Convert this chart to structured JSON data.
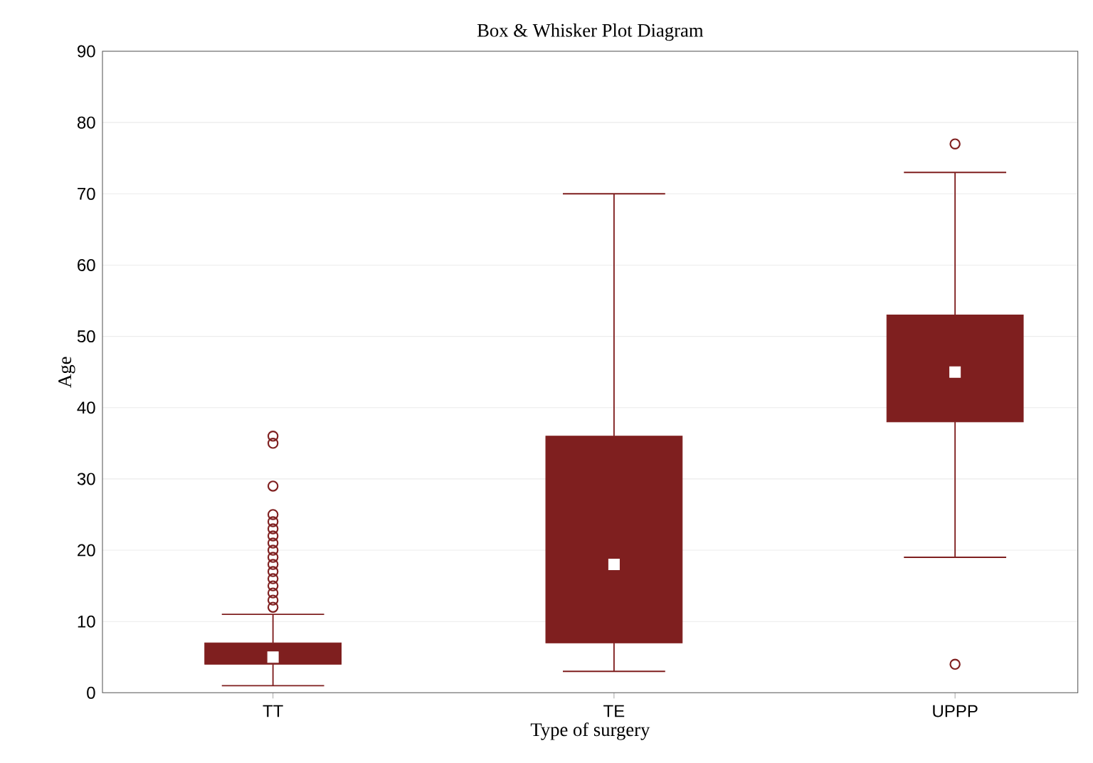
{
  "chart_data": {
    "type": "box",
    "title": "Box & Whisker Plot Diagram",
    "xlabel": "Type of surgery",
    "ylabel": "Age",
    "categories": [
      "TT",
      "TE",
      "UPPP"
    ],
    "boxes": [
      {
        "low": 1,
        "q1": 4,
        "median": 5,
        "q3": 7,
        "high": 11,
        "outliers": [
          12,
          13,
          14,
          15,
          16,
          17,
          18,
          19,
          20,
          21,
          22,
          23,
          24,
          25,
          29,
          35,
          36
        ]
      },
      {
        "low": 3,
        "q1": 7,
        "median": 18,
        "q3": 36,
        "high": 70
      },
      {
        "low": 19,
        "q1": 38,
        "median": 45,
        "q3": 53,
        "high": 73,
        "outliers": [
          4,
          77
        ]
      }
    ],
    "color": "#7f1f1f",
    "ylim": [
      0,
      90
    ],
    "yticks": [
      0,
      10,
      20,
      30,
      40,
      50,
      60,
      70,
      80,
      90
    ],
    "grid": "y"
  }
}
